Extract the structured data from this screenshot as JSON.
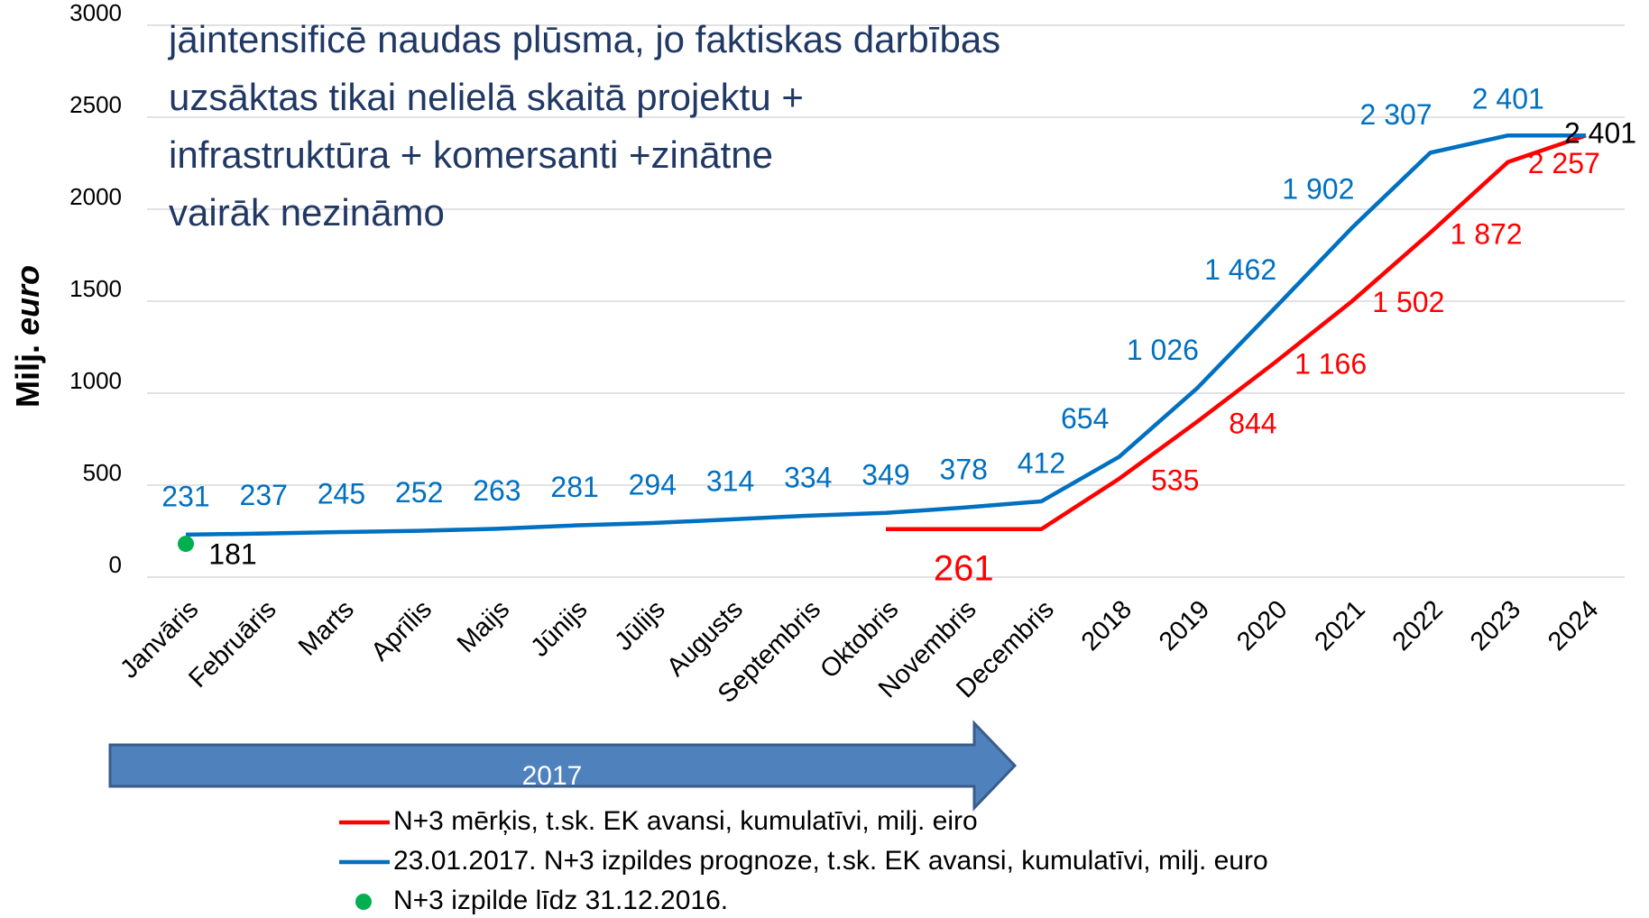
{
  "chart_data": {
    "type": "line",
    "annotation": [
      "jāintensificē naudas plūsma, jo faktiskas darbības",
      "uzsāktas tikai nelielā skaitā projektu +",
      "infrastruktūra + komersanti +zinātne",
      "vairāk nezināmo"
    ],
    "y_label": [
      "Milj.",
      "euro"
    ],
    "period_label": "2017",
    "categories": [
      "Janvāris",
      "Februāris",
      "Marts",
      "Aprīlis",
      "Maijs",
      "Jūnijs",
      "Jūlijs",
      "Augusts",
      "Septembris",
      "Oktobris",
      "Novembris",
      "Decembris",
      "2018",
      "2019",
      "2020",
      "2021",
      "2022",
      "2023",
      "2024"
    ],
    "ylim": [
      0,
      3000
    ],
    "yticks": [
      0,
      500,
      1000,
      1500,
      2000,
      2500,
      3000
    ],
    "grid": true,
    "series": [
      {
        "name": "N+3 mērķis, t.sk. EK avansi, kumulatīvi, milj. eiro",
        "color": "#ff0000",
        "style": "line",
        "values": [
          null,
          null,
          null,
          null,
          null,
          null,
          null,
          null,
          null,
          261,
          261,
          261,
          535,
          844,
          1166,
          1502,
          1872,
          2257,
          2401
        ],
        "value_labels": [
          null,
          null,
          null,
          null,
          null,
          null,
          null,
          null,
          null,
          null,
          "261",
          null,
          "535",
          "844",
          "1 166",
          "1 502",
          "1 872",
          "2 257",
          "2 401"
        ],
        "value_label_colors": [
          null,
          null,
          null,
          null,
          null,
          null,
          null,
          null,
          null,
          null,
          "#ff0000",
          null,
          "#ff0000",
          "#ff0000",
          "#ff0000",
          "#ff0000",
          "#ff0000",
          "#ff0000",
          "#000000"
        ]
      },
      {
        "name": "23.01.2017. N+3 izpildes prognoze, t.sk. EK avansi, kumulatīvi, milj. euro",
        "color": "#0070c0",
        "style": "line",
        "values": [
          231,
          237,
          245,
          252,
          263,
          281,
          294,
          314,
          334,
          349,
          378,
          412,
          654,
          1026,
          1462,
          1902,
          2307,
          2401,
          2401
        ],
        "value_labels": [
          "231",
          "237",
          "245",
          "252",
          "263",
          "281",
          "294",
          "314",
          "334",
          "349",
          "378",
          "412",
          "654",
          "1 026",
          "1 462",
          "1 902",
          "2 307",
          "2 401",
          null
        ],
        "label_color": "#0070c0"
      },
      {
        "name": "N+3 izpilde līdz 31.12.2016.",
        "color": "#00b050",
        "style": "marker",
        "values": [
          181,
          null,
          null,
          null,
          null,
          null,
          null,
          null,
          null,
          null,
          null,
          null,
          null,
          null,
          null,
          null,
          null,
          null,
          null
        ],
        "value_labels": [
          "181",
          null,
          null,
          null,
          null,
          null,
          null,
          null,
          null,
          null,
          null,
          null,
          null,
          null,
          null,
          null,
          null,
          null,
          null
        ],
        "label_color": "#000000"
      }
    ]
  }
}
